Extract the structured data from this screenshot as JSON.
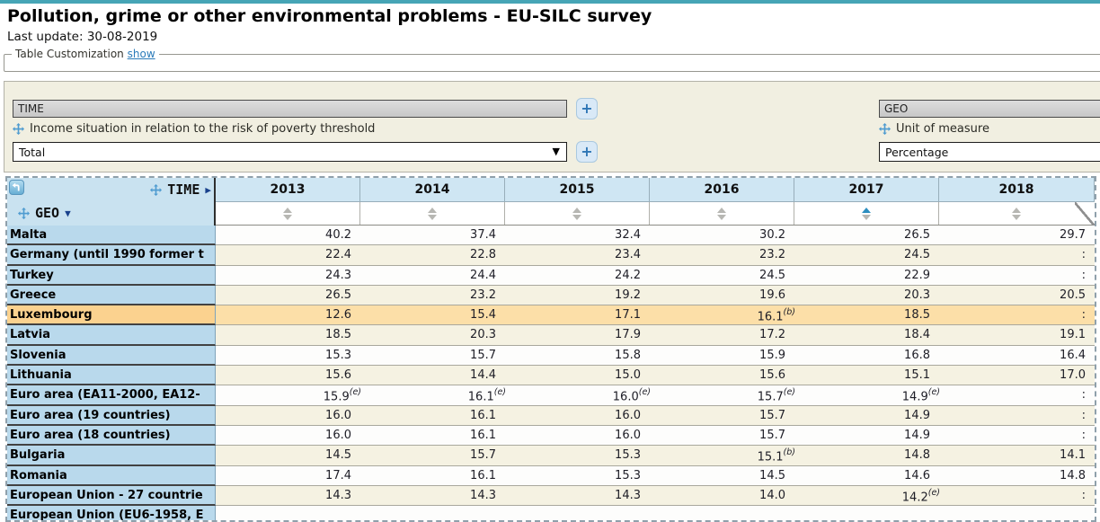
{
  "page": {
    "title": "Pollution, grime or other environmental problems - EU-SILC survey",
    "last_update": "Last update: 30-08-2019",
    "accent_colors": {
      "top_bar": "#46a5b6",
      "header_blue": "#cfe6f3",
      "row_label_blue": "#b9d9ec",
      "highlight_orange": "#fcdfa8",
      "stripe_beige": "#f5f2e2",
      "sort_active": "#2e8fc0"
    }
  },
  "customization": {
    "legend": "Table Customization",
    "show_link": "show",
    "time_field": "TIME",
    "geo_field": "GEO",
    "income_label": "Income situation in relation to the risk of poverty threshold",
    "income_value": "Total",
    "unit_label": "Unit of measure",
    "unit_value": "Percentage",
    "add_button": "+",
    "select_caret": "▼"
  },
  "table": {
    "time_axis": "TIME",
    "time_caret": "▶",
    "geo_axis": "GEO",
    "geo_caret": "▼",
    "years": [
      "2013",
      "2014",
      "2015",
      "2016",
      "2017",
      "2018"
    ],
    "sorted_year": "2017",
    "rows": [
      {
        "label": "Malta",
        "cells": [
          "40.2",
          "37.4",
          "32.4",
          "30.2",
          "26.5",
          "29.7"
        ],
        "flags": [
          "",
          "",
          "",
          "",
          "",
          ""
        ]
      },
      {
        "label": "Germany (until 1990 former t",
        "cells": [
          "22.4",
          "22.8",
          "23.4",
          "23.2",
          "24.5",
          ":"
        ],
        "flags": [
          "",
          "",
          "",
          "",
          "",
          ""
        ]
      },
      {
        "label": "Turkey",
        "cells": [
          "24.3",
          "24.4",
          "24.2",
          "24.5",
          "22.9",
          ":"
        ],
        "flags": [
          "",
          "",
          "",
          "",
          "",
          ""
        ]
      },
      {
        "label": "Greece",
        "cells": [
          "26.5",
          "23.2",
          "19.2",
          "19.6",
          "20.3",
          "20.5"
        ],
        "flags": [
          "",
          "",
          "",
          "",
          "",
          ""
        ]
      },
      {
        "label": "Luxembourg",
        "highlight": true,
        "cells": [
          "12.6",
          "15.4",
          "17.1",
          "16.1",
          "18.5",
          ":"
        ],
        "flags": [
          "",
          "",
          "",
          "(b)",
          "",
          ""
        ]
      },
      {
        "label": "Latvia",
        "cells": [
          "18.5",
          "20.3",
          "17.9",
          "17.2",
          "18.4",
          "19.1"
        ],
        "flags": [
          "",
          "",
          "",
          "",
          "",
          ""
        ]
      },
      {
        "label": "Slovenia",
        "cells": [
          "15.3",
          "15.7",
          "15.8",
          "15.9",
          "16.8",
          "16.4"
        ],
        "flags": [
          "",
          "",
          "",
          "",
          "",
          ""
        ]
      },
      {
        "label": "Lithuania",
        "cells": [
          "15.6",
          "14.4",
          "15.0",
          "15.6",
          "15.1",
          "17.0"
        ],
        "flags": [
          "",
          "",
          "",
          "",
          "",
          ""
        ]
      },
      {
        "label": "Euro area (EA11-2000, EA12-",
        "cells": [
          "15.9",
          "16.1",
          "16.0",
          "15.7",
          "14.9",
          ":"
        ],
        "flags": [
          "(e)",
          "(e)",
          "(e)",
          "(e)",
          "(e)",
          ""
        ]
      },
      {
        "label": "Euro area (19 countries)",
        "cells": [
          "16.0",
          "16.1",
          "16.0",
          "15.7",
          "14.9",
          ":"
        ],
        "flags": [
          "",
          "",
          "",
          "",
          "",
          ""
        ]
      },
      {
        "label": "Euro area (18 countries)",
        "cells": [
          "16.0",
          "16.1",
          "16.0",
          "15.7",
          "14.9",
          ":"
        ],
        "flags": [
          "",
          "",
          "",
          "",
          "",
          ""
        ]
      },
      {
        "label": "Bulgaria",
        "cells": [
          "14.5",
          "15.7",
          "15.3",
          "15.1",
          "14.8",
          "14.1"
        ],
        "flags": [
          "",
          "",
          "",
          "(b)",
          "",
          ""
        ]
      },
      {
        "label": "Romania",
        "cells": [
          "17.4",
          "16.1",
          "15.3",
          "14.5",
          "14.6",
          "14.8"
        ],
        "flags": [
          "",
          "",
          "",
          "",
          "",
          ""
        ]
      },
      {
        "label": "European Union - 27 countrie",
        "cells": [
          "14.3",
          "14.3",
          "14.3",
          "14.0",
          "14.2",
          ":"
        ],
        "flags": [
          "",
          "",
          "",
          "",
          "(e)",
          ""
        ]
      },
      {
        "label": "European Union (EU6-1958, E",
        "cells": [
          "",
          "",
          "",
          "",
          "",
          ""
        ],
        "flags": [
          "",
          "",
          "",
          "",
          "",
          ""
        ]
      }
    ]
  }
}
